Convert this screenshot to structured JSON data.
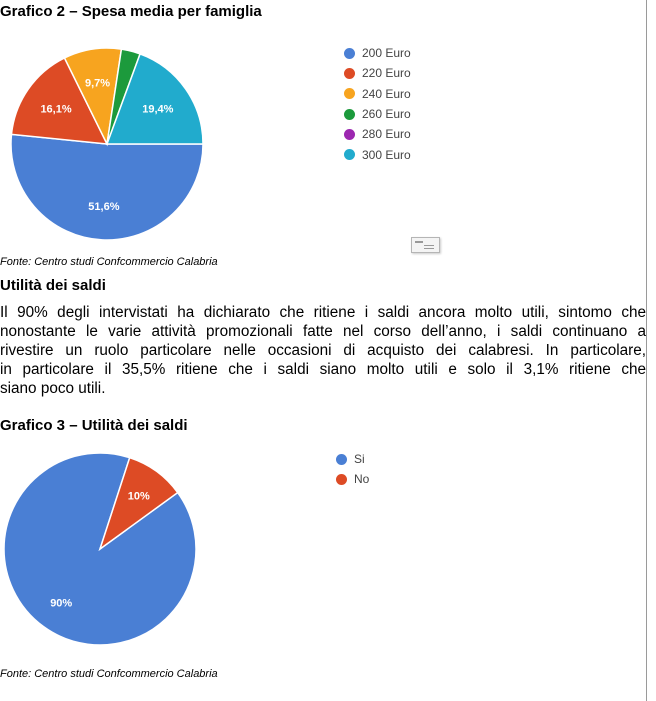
{
  "chart_titles": {
    "chart2": "Grafico 2 – Spesa media per famiglia",
    "chart3": "Grafico 3 – Utilità dei saldi"
  },
  "source_note": "Fonte: Centro studi Confcommercio Calabria",
  "section_heading": "Utilità dei saldi",
  "paragraph_lines": [
    "Il 90% degli intervistati ha dichiarato che ritiene i saldi ancora molto utili, sintomo che",
    "nonostante le varie attività promozionali fatte nel corso dell’anno, i saldi continuano a",
    "rivestire un ruolo particolare nelle occasioni di acquisto dei calabresi. In particolare,",
    "in particolare il 35,5% ritiene che i saldi siano molto utili e solo il 3,1% ritiene che",
    "siano poco utili."
  ],
  "chart_data": [
    {
      "type": "pie",
      "title": "Grafico 2 – Spesa media per famiglia",
      "categories": [
        "200 Euro",
        "220 Euro",
        "240 Euro",
        "260 Euro",
        "280 Euro",
        "300 Euro"
      ],
      "values": [
        51.6,
        16.1,
        9.7,
        3.2,
        0,
        19.4
      ],
      "labels": [
        "51,6%",
        "16,1%",
        "9,7%",
        "",
        "",
        "19,4%"
      ],
      "colors": [
        "#4a7fd4",
        "#dd4b25",
        "#f7a41f",
        "#1c9a3c",
        "#9c27b0",
        "#21abcd"
      ],
      "legend_position": "right"
    },
    {
      "type": "pie",
      "title": "Grafico 3 – Utilità dei saldi",
      "categories": [
        "Si",
        "No"
      ],
      "values": [
        90,
        10
      ],
      "labels": [
        "90%",
        "10%"
      ],
      "colors": [
        "#4a7fd4",
        "#dd4b25"
      ],
      "legend_position": "right"
    }
  ]
}
